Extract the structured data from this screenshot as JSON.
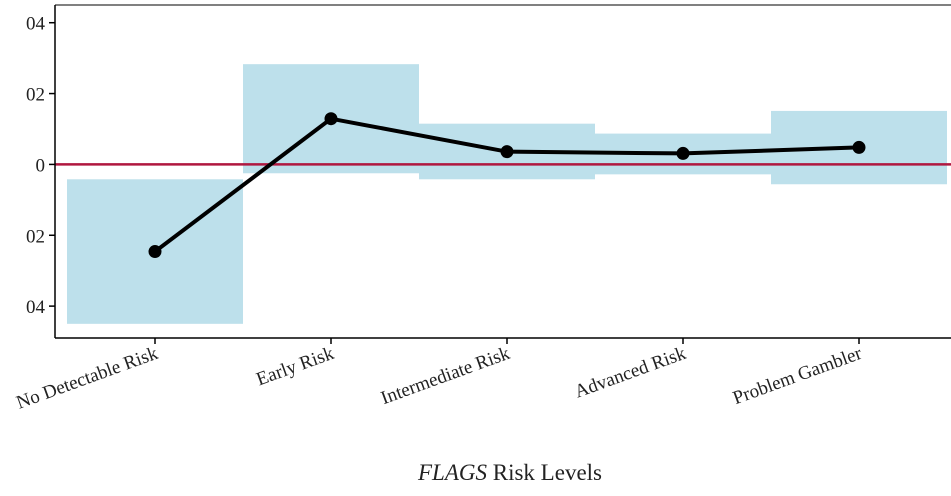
{
  "chart_data": {
    "type": "interval_line",
    "categories": [
      "No Detectable Risk",
      "Early Risk",
      "Intermediate Risk",
      "Advanced Risk",
      "Problem Gambler"
    ],
    "values": [
      -0.0246,
      0.0129,
      0.0036,
      0.0031,
      0.0048
    ],
    "ci_lower": [
      -0.045,
      -0.0025,
      -0.0042,
      -0.0028,
      -0.0056
    ],
    "ci_upper": [
      -0.0042,
      0.0283,
      0.0115,
      0.0087,
      0.0151
    ],
    "color": "#000000",
    "band_color": "#add8e6",
    "reference_color": "#b0173f",
    "reference_line": 0,
    "ylim": [
      -0.049,
      0.045
    ],
    "yticks": [
      {
        "value": -0.04,
        "label": "04"
      },
      {
        "value": -0.02,
        "label": "02"
      },
      0,
      {
        "value": 0.02,
        "label": "02"
      },
      {
        "value": 0.04,
        "label": "04"
      }
    ],
    "x_label_italic": "FLAGS",
    "x_label": "Risk Levels"
  }
}
